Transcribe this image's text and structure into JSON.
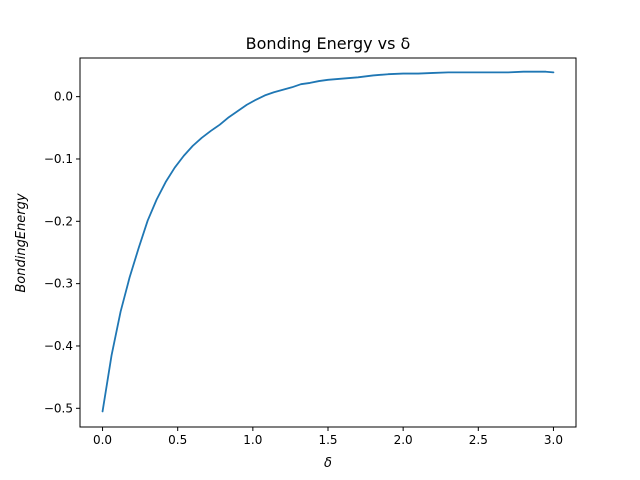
{
  "chart_data": {
    "type": "line",
    "title": "Bonding Energy vs δ",
    "xlabel": "δ",
    "ylabel": "BondingEnergy",
    "xlim": [
      -0.15,
      3.15
    ],
    "ylim": [
      -0.53,
      0.062
    ],
    "xticks": [
      0.0,
      0.5,
      1.0,
      1.5,
      2.0,
      2.5,
      3.0
    ],
    "xtick_labels": [
      "0.0",
      "0.5",
      "1.0",
      "1.5",
      "2.0",
      "2.5",
      "3.0"
    ],
    "yticks": [
      0.0,
      -0.1,
      -0.2,
      -0.3,
      -0.4,
      -0.5
    ],
    "ytick_labels": [
      "0.0",
      "−0.1",
      "−0.2",
      "−0.3",
      "−0.4",
      "−0.5"
    ],
    "grid": false,
    "legend": "none",
    "series": [
      {
        "color": "#1f77b4",
        "x": [
          0.0,
          0.06,
          0.12,
          0.18,
          0.24,
          0.3,
          0.36,
          0.42,
          0.48,
          0.54,
          0.6,
          0.66,
          0.72,
          0.78,
          0.84,
          0.9,
          0.96,
          1.02,
          1.08,
          1.14,
          1.2,
          1.26,
          1.32,
          1.38,
          1.44,
          1.5,
          1.6,
          1.7,
          1.8,
          1.9,
          2.0,
          2.1,
          2.2,
          2.3,
          2.4,
          2.5,
          2.6,
          2.7,
          2.8,
          2.9,
          2.95,
          3.0
        ],
        "y": [
          -0.505,
          -0.415,
          -0.345,
          -0.29,
          -0.243,
          -0.199,
          -0.165,
          -0.137,
          -0.114,
          -0.095,
          -0.079,
          -0.066,
          -0.055,
          -0.045,
          -0.033,
          -0.023,
          -0.013,
          -0.005,
          0.002,
          0.007,
          0.011,
          0.015,
          0.02,
          0.022,
          0.025,
          0.027,
          0.029,
          0.031,
          0.034,
          0.036,
          0.037,
          0.037,
          0.038,
          0.039,
          0.039,
          0.039,
          0.039,
          0.039,
          0.04,
          0.04,
          0.04,
          0.039
        ]
      }
    ]
  }
}
